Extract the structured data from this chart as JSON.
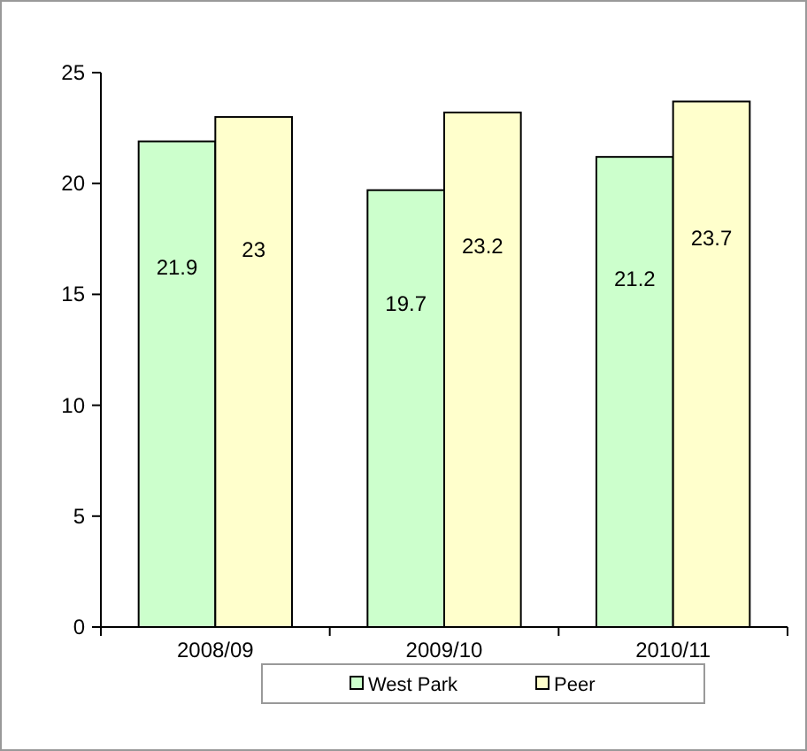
{
  "chart_data": {
    "type": "bar",
    "categories": [
      "2008/09",
      "2009/10",
      "2010/11"
    ],
    "series": [
      {
        "name": "West Park",
        "color": "#ccffcc",
        "values": [
          21.9,
          19.7,
          21.2
        ]
      },
      {
        "name": "Peer",
        "color": "#ffffcc",
        "values": [
          23,
          23.2,
          23.7
        ]
      }
    ],
    "ylim": [
      0,
      25
    ],
    "yticks": [
      0,
      5,
      10,
      15,
      20,
      25
    ],
    "data_labels": true,
    "legend": "bottom",
    "grid": false
  }
}
